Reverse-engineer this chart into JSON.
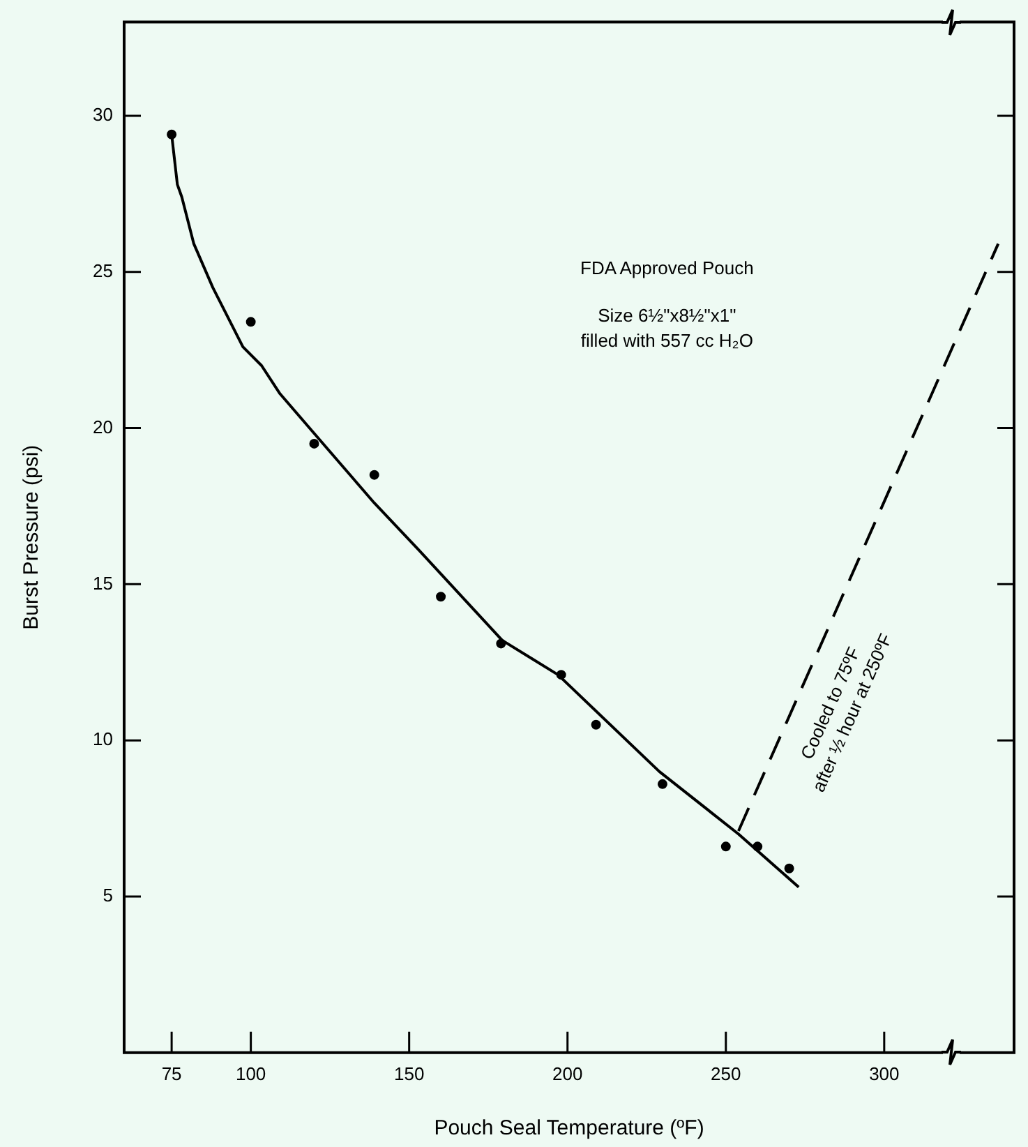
{
  "chart_data": {
    "type": "scatter",
    "xlabel": "Pouch Seal Temperature (ºF)",
    "ylabel": "Burst Pressure (psi)",
    "xlim": [
      60,
      341
    ],
    "ylim": [
      0,
      33
    ],
    "xticks": [
      75,
      100,
      150,
      200,
      250,
      300
    ],
    "yticks": [
      5,
      10,
      15,
      20,
      25,
      30
    ],
    "grid": false,
    "legend": false,
    "annotations": [
      "FDA Approved Pouch",
      "Size 6½\"x8½\"x1\"",
      "filled with 557 cc H₂O",
      {
        "text": "Cooled to 75ºF\nafter ½ hour at 250ºF",
        "x": 271,
        "y": 11
      }
    ],
    "series": [
      {
        "type": "scatter",
        "color": "#000000",
        "marker": "circle",
        "x": [
          75,
          100,
          120,
          139,
          160,
          179,
          198,
          209,
          230,
          250,
          260,
          270
        ],
        "values": [
          29.4,
          23.4,
          19.5,
          18.5,
          14.6,
          13.1,
          12.1,
          10.5,
          8.6,
          6.6,
          6.6,
          5.9
        ]
      },
      {
        "type": "line",
        "color": "#000000",
        "line_style": "solid",
        "x": [
          75,
          76.8,
          78.2,
          82,
          88,
          97.5,
          103.4,
          109.2,
          119.4,
          139,
          153,
          179.4,
          197,
          229,
          254,
          273
        ],
        "values": [
          29.4,
          27.8,
          27.4,
          25.9,
          24.5,
          22.6,
          22.0,
          21.1,
          19.9,
          17.6,
          16.1,
          13.2,
          12.1,
          9.0,
          7.0,
          5.3
        ]
      },
      {
        "type": "line",
        "color": "#000000",
        "line_style": "dashed",
        "x": [
          254,
          336
        ],
        "values": [
          7.1,
          25.9
        ]
      }
    ]
  }
}
